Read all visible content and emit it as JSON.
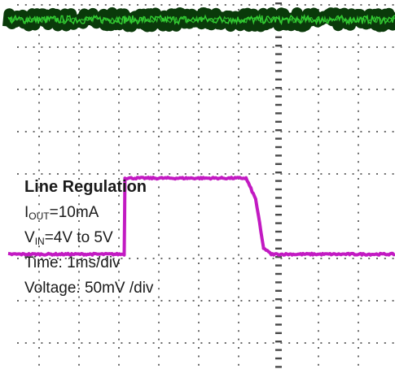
{
  "chart_data": {
    "type": "line",
    "title": "Line Regulation",
    "annotations": {
      "title": "Line Regulation",
      "iout_symbol": "I",
      "iout_sub": "OUT",
      "iout_value": "=10mA",
      "vin_symbol": "V",
      "vin_sub": "IN",
      "vin_value": "=4V to 5V",
      "time": "Time: 1ms/div",
      "voltage": "Voltage: 50mV /div"
    },
    "x_unit": "ms",
    "x_per_div": 1,
    "x_divisions": 10,
    "xlim": [
      0,
      10
    ],
    "y_per_div": "50mV",
    "grid": true,
    "series": [
      {
        "color": "#33cc33",
        "shadow_color": "#0a3a0a",
        "x": [
          0,
          1,
          2,
          3,
          4,
          5,
          6,
          7,
          8,
          9,
          10
        ],
        "y_div": [
          4.65,
          4.65,
          4.65,
          4.65,
          4.65,
          4.65,
          4.65,
          4.65,
          4.65,
          4.65,
          4.65
        ],
        "noise_div": 0.1
      },
      {
        "color": "#c21ac2",
        "x": [
          0,
          3.0,
          3.02,
          6.15,
          6.4,
          6.6,
          6.8,
          10
        ],
        "y_div": [
          -0.9,
          -0.9,
          0.9,
          0.9,
          0.4,
          -0.75,
          -0.9,
          -0.9
        ],
        "noise_div": 0.02
      }
    ]
  }
}
